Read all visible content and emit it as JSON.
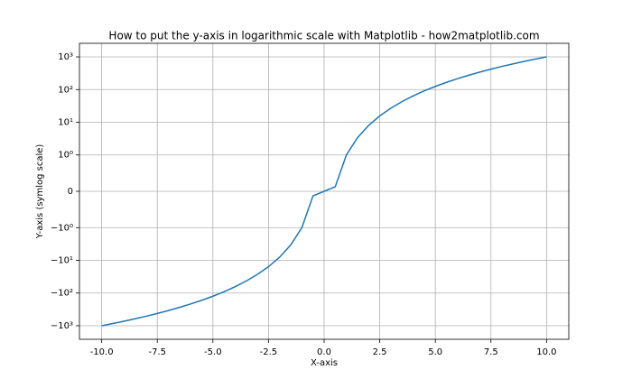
{
  "chart_data": {
    "type": "line",
    "title": "How to put the y-axis in logarithmic scale with Matplotlib - how2matplotlib.com",
    "xlabel": "X-axis",
    "ylabel": "Y-axis (symlog scale)",
    "yscale": "symlog",
    "linthresh": 1,
    "grid": true,
    "x": [
      -10,
      -9.5,
      -9,
      -8.5,
      -8,
      -7.5,
      -7,
      -6.5,
      -6,
      -5.5,
      -5,
      -4.5,
      -4,
      -3.5,
      -3,
      -2.5,
      -2,
      -1.5,
      -1,
      -0.5,
      0,
      0.5,
      1,
      1.5,
      2,
      2.5,
      3,
      3.5,
      4,
      4.5,
      5,
      5.5,
      6,
      6.5,
      7,
      7.5,
      8,
      8.5,
      9,
      9.5,
      10
    ],
    "series": [
      {
        "color": "#1f77b4",
        "values": [
          -1000,
          -857.375,
          -729,
          -614.125,
          -512,
          -421.875,
          -343,
          -274.625,
          -216,
          -166.375,
          -125,
          -91.125,
          -64,
          -42.875,
          -27,
          -15.625,
          -8,
          -3.375,
          -1,
          -0.125,
          0,
          0.125,
          1,
          3.375,
          8,
          15.625,
          27,
          42.875,
          64,
          91.125,
          125,
          166.375,
          216,
          274.625,
          343,
          421.875,
          512,
          614.125,
          729,
          857.375,
          1000
        ]
      }
    ],
    "xlim": [
      -11,
      11
    ],
    "xticks": [
      {
        "value": -10,
        "label": "-10.0"
      },
      {
        "value": -7.5,
        "label": "-7.5"
      },
      {
        "value": -5,
        "label": "-5.0"
      },
      {
        "value": -2.5,
        "label": "-2.5"
      },
      {
        "value": 0,
        "label": "0.0"
      },
      {
        "value": 2.5,
        "label": "2.5"
      },
      {
        "value": 5,
        "label": "5.0"
      },
      {
        "value": 7.5,
        "label": "7.5"
      },
      {
        "value": 10,
        "label": "10.0"
      }
    ],
    "ylim": [
      -2600,
      2600
    ],
    "yticks": [
      {
        "value": -1000,
        "label": "−10³"
      },
      {
        "value": -100,
        "label": "−10²"
      },
      {
        "value": -10,
        "label": "−10¹"
      },
      {
        "value": -1,
        "label": "−10⁰"
      },
      0,
      {
        "value": 1,
        "label": "10⁰"
      },
      {
        "value": 10,
        "label": "10¹"
      },
      {
        "value": 100,
        "label": "10²"
      },
      {
        "value": 1000,
        "label": "10³"
      }
    ]
  }
}
